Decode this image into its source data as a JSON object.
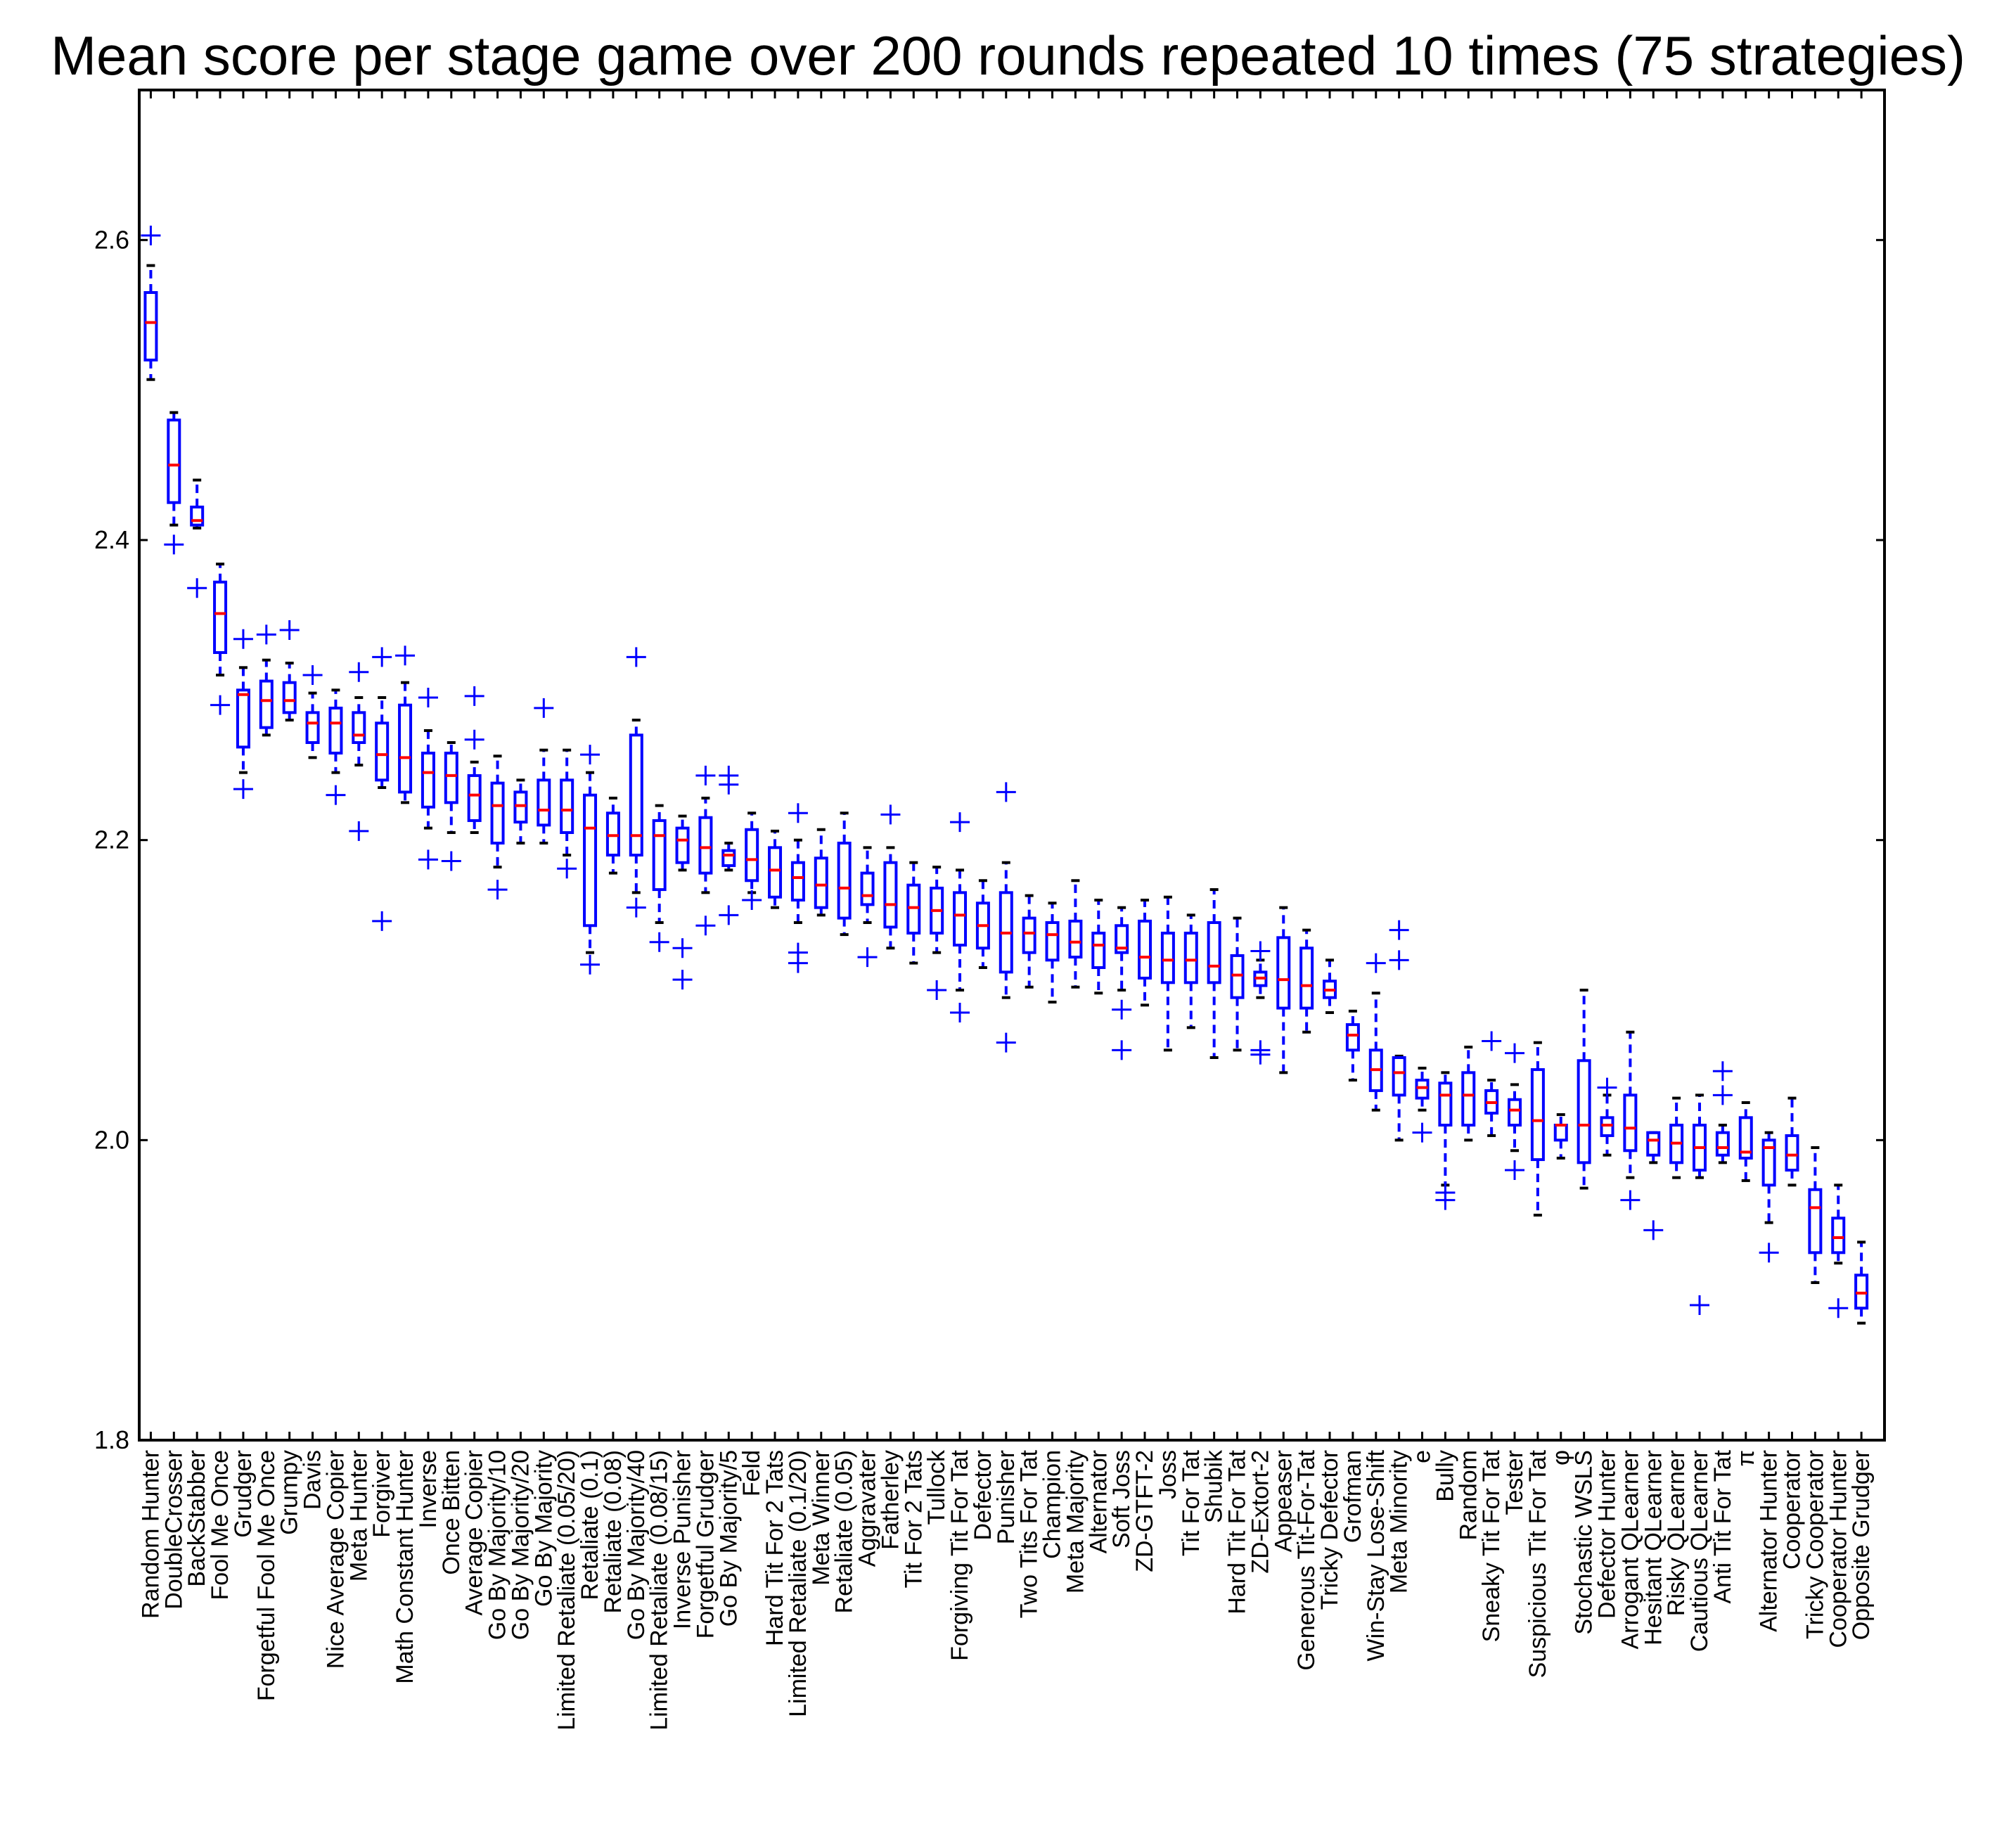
{
  "chart_data": {
    "type": "box",
    "title": "Mean score per stage game over 200 rounds repeated 10 times (75 strategies)",
    "xlabel": "",
    "ylabel": "",
    "ylim": [
      1.8,
      2.7
    ],
    "yticks": [
      1.8,
      2.0,
      2.2,
      2.4,
      2.6
    ],
    "ytick_labels": [
      "1.8",
      "2.0",
      "2.2",
      "2.4",
      "2.6"
    ],
    "grid": false,
    "box_color": "#0000ff",
    "median_color": "#ff0000",
    "whisker_cap_color": "#000000",
    "categories": [
      "Random Hunter",
      "DoubleCrosser",
      "BackStabber",
      "Fool Me Once",
      "Grudger",
      "Forgetful Fool Me Once",
      "Grumpy",
      "Davis",
      "Nice Average Copier",
      "Meta Hunter",
      "Forgiver",
      "Math Constant Hunter",
      "Inverse",
      "Once Bitten",
      "Average Copier",
      "Go By Majority/10",
      "Go By Majority/20",
      "Go By Majority",
      "Limited Retaliate (0.05/20)",
      "Retaliate (0.1)",
      "Retaliate (0.08)",
      "Go By Majority/40",
      "Limited Retaliate (0.08/15)",
      "Inverse Punisher",
      "Forgetful Grudger",
      "Go By Majority/5",
      "Feld",
      "Hard Tit For 2 Tats",
      "Limited Retaliate (0.1/20)",
      "Meta Winner",
      "Retaliate (0.05)",
      "Aggravater",
      "Fatherley",
      "Tit For 2 Tats",
      "Tullock",
      "Forgiving Tit For Tat",
      "Defector",
      "Punisher",
      "Two Tits For Tat",
      "Champion",
      "Meta Majority",
      "Alternator",
      "Soft Joss",
      "ZD-GTFT-2",
      "Joss",
      "Tit For Tat",
      "Shubik",
      "Hard Tit For Tat",
      "ZD-Extort-2",
      "Appeaser",
      "Generous Tit-For-Tat",
      "Tricky Defector",
      "Grofman",
      "Win-Stay Lose-Shift",
      "Meta Minority",
      "e",
      "Bully",
      "Random",
      "Sneaky Tit For Tat",
      "Tester",
      "Suspicious Tit For Tat",
      "φ",
      "Stochastic WSLS",
      "Defector Hunter",
      "Arrogant QLearner",
      "Hesitant QLearner",
      "Risky QLearner",
      "Cautious QLearner",
      "Anti Tit For Tat",
      "π",
      "Alternator Hunter",
      "Cooperator",
      "Tricky Cooperator",
      "Cooperator Hunter",
      "Opposite Grudger"
    ],
    "boxes": [
      {
        "median": 2.545,
        "q1": 2.52,
        "q3": 2.565,
        "whislo": 2.507,
        "whishi": 2.583,
        "fliers": [
          2.603
        ]
      },
      {
        "median": 2.45,
        "q1": 2.425,
        "q3": 2.48,
        "whislo": 2.41,
        "whishi": 2.485,
        "fliers": [
          2.397
        ]
      },
      {
        "median": 2.413,
        "q1": 2.41,
        "q3": 2.422,
        "whislo": 2.408,
        "whishi": 2.44,
        "fliers": [
          2.368
        ]
      },
      {
        "median": 2.351,
        "q1": 2.325,
        "q3": 2.372,
        "whislo": 2.31,
        "whishi": 2.384,
        "fliers": [
          2.29
        ]
      },
      {
        "median": 2.297,
        "q1": 2.262,
        "q3": 2.3,
        "whislo": 2.245,
        "whishi": 2.315,
        "fliers": [
          2.334,
          2.234
        ]
      },
      {
        "median": 2.293,
        "q1": 2.275,
        "q3": 2.306,
        "whislo": 2.27,
        "whishi": 2.32,
        "fliers": [
          2.337
        ]
      },
      {
        "median": 2.293,
        "q1": 2.285,
        "q3": 2.305,
        "whislo": 2.28,
        "whishi": 2.318,
        "fliers": [
          2.34
        ]
      },
      {
        "median": 2.278,
        "q1": 2.265,
        "q3": 2.285,
        "whislo": 2.255,
        "whishi": 2.298,
        "fliers": [
          2.31
        ]
      },
      {
        "median": 2.278,
        "q1": 2.258,
        "q3": 2.288,
        "whislo": 2.245,
        "whishi": 2.3,
        "fliers": [
          2.23
        ]
      },
      {
        "median": 2.27,
        "q1": 2.265,
        "q3": 2.285,
        "whislo": 2.25,
        "whishi": 2.295,
        "fliers": [
          2.312,
          2.206
        ]
      },
      {
        "median": 2.257,
        "q1": 2.24,
        "q3": 2.278,
        "whislo": 2.235,
        "whishi": 2.295,
        "fliers": [
          2.322,
          2.146
        ]
      },
      {
        "median": 2.255,
        "q1": 2.232,
        "q3": 2.29,
        "whislo": 2.225,
        "whishi": 2.305,
        "fliers": [
          2.323
        ]
      },
      {
        "median": 2.245,
        "q1": 2.222,
        "q3": 2.258,
        "whislo": 2.208,
        "whishi": 2.273,
        "fliers": [
          2.295,
          2.187
        ]
      },
      {
        "median": 2.243,
        "q1": 2.225,
        "q3": 2.258,
        "whislo": 2.205,
        "whishi": 2.265,
        "fliers": [
          2.186
        ]
      },
      {
        "median": 2.23,
        "q1": 2.213,
        "q3": 2.243,
        "whislo": 2.205,
        "whishi": 2.252,
        "fliers": [
          2.296,
          2.267
        ]
      },
      {
        "median": 2.223,
        "q1": 2.198,
        "q3": 2.238,
        "whislo": 2.182,
        "whishi": 2.256,
        "fliers": [
          2.167
        ]
      },
      {
        "median": 2.223,
        "q1": 2.212,
        "q3": 2.232,
        "whislo": 2.198,
        "whishi": 2.24,
        "fliers": []
      },
      {
        "median": 2.22,
        "q1": 2.21,
        "q3": 2.24,
        "whislo": 2.198,
        "whishi": 2.26,
        "fliers": [
          2.288
        ]
      },
      {
        "median": 2.22,
        "q1": 2.205,
        "q3": 2.24,
        "whislo": 2.19,
        "whishi": 2.26,
        "fliers": [
          2.181
        ]
      },
      {
        "median": 2.208,
        "q1": 2.143,
        "q3": 2.23,
        "whislo": 2.125,
        "whishi": 2.245,
        "fliers": [
          2.257,
          2.117
        ]
      },
      {
        "median": 2.203,
        "q1": 2.19,
        "q3": 2.218,
        "whislo": 2.178,
        "whishi": 2.228,
        "fliers": []
      },
      {
        "median": 2.203,
        "q1": 2.19,
        "q3": 2.27,
        "whislo": 2.165,
        "whishi": 2.28,
        "fliers": [
          2.322,
          2.155
        ]
      },
      {
        "median": 2.203,
        "q1": 2.167,
        "q3": 2.213,
        "whislo": 2.145,
        "whishi": 2.223,
        "fliers": [
          2.132
        ]
      },
      {
        "median": 2.2,
        "q1": 2.185,
        "q3": 2.208,
        "whislo": 2.18,
        "whishi": 2.216,
        "fliers": [
          2.128,
          2.107
        ]
      },
      {
        "median": 2.195,
        "q1": 2.178,
        "q3": 2.215,
        "whislo": 2.165,
        "whishi": 2.228,
        "fliers": [
          2.243,
          2.143
        ]
      },
      {
        "median": 2.19,
        "q1": 2.183,
        "q3": 2.193,
        "whislo": 2.18,
        "whishi": 2.198,
        "fliers": [
          2.243,
          2.237,
          2.15
        ]
      },
      {
        "median": 2.187,
        "q1": 2.173,
        "q3": 2.207,
        "whislo": 2.165,
        "whishi": 2.218,
        "fliers": [
          2.16
        ]
      },
      {
        "median": 2.18,
        "q1": 2.162,
        "q3": 2.195,
        "whislo": 2.155,
        "whishi": 2.206,
        "fliers": []
      },
      {
        "median": 2.175,
        "q1": 2.16,
        "q3": 2.185,
        "whislo": 2.145,
        "whishi": 2.2,
        "fliers": [
          2.218,
          2.125,
          2.118
        ]
      },
      {
        "median": 2.17,
        "q1": 2.155,
        "q3": 2.188,
        "whislo": 2.15,
        "whishi": 2.207,
        "fliers": []
      },
      {
        "median": 2.168,
        "q1": 2.148,
        "q3": 2.198,
        "whislo": 2.137,
        "whishi": 2.218,
        "fliers": []
      },
      {
        "median": 2.163,
        "q1": 2.157,
        "q3": 2.178,
        "whislo": 2.145,
        "whishi": 2.195,
        "fliers": [
          2.122
        ]
      },
      {
        "median": 2.157,
        "q1": 2.142,
        "q3": 2.185,
        "whislo": 2.128,
        "whishi": 2.195,
        "fliers": [
          2.217
        ]
      },
      {
        "median": 2.155,
        "q1": 2.138,
        "q3": 2.17,
        "whislo": 2.118,
        "whishi": 2.185,
        "fliers": []
      },
      {
        "median": 2.153,
        "q1": 2.138,
        "q3": 2.168,
        "whislo": 2.125,
        "whishi": 2.182,
        "fliers": [
          2.1
        ]
      },
      {
        "median": 2.15,
        "q1": 2.13,
        "q3": 2.165,
        "whislo": 2.1,
        "whishi": 2.18,
        "fliers": [
          2.212,
          2.085
        ]
      },
      {
        "median": 2.143,
        "q1": 2.128,
        "q3": 2.158,
        "whislo": 2.115,
        "whishi": 2.173,
        "fliers": []
      },
      {
        "median": 2.138,
        "q1": 2.112,
        "q3": 2.165,
        "whislo": 2.095,
        "whishi": 2.185,
        "fliers": [
          2.232,
          2.065
        ]
      },
      {
        "median": 2.138,
        "q1": 2.125,
        "q3": 2.148,
        "whislo": 2.102,
        "whishi": 2.163,
        "fliers": []
      },
      {
        "median": 2.137,
        "q1": 2.12,
        "q3": 2.145,
        "whislo": 2.092,
        "whishi": 2.158,
        "fliers": []
      },
      {
        "median": 2.132,
        "q1": 2.122,
        "q3": 2.146,
        "whislo": 2.102,
        "whishi": 2.173,
        "fliers": []
      },
      {
        "median": 2.13,
        "q1": 2.115,
        "q3": 2.138,
        "whislo": 2.098,
        "whishi": 2.16,
        "fliers": []
      },
      {
        "median": 2.128,
        "q1": 2.125,
        "q3": 2.143,
        "whislo": 2.1,
        "whishi": 2.155,
        "fliers": [
          2.087,
          2.06
        ]
      },
      {
        "median": 2.122,
        "q1": 2.108,
        "q3": 2.146,
        "whislo": 2.09,
        "whishi": 2.16,
        "fliers": []
      },
      {
        "median": 2.12,
        "q1": 2.105,
        "q3": 2.138,
        "whislo": 2.06,
        "whishi": 2.162,
        "fliers": []
      },
      {
        "median": 2.12,
        "q1": 2.105,
        "q3": 2.138,
        "whislo": 2.075,
        "whishi": 2.15,
        "fliers": []
      },
      {
        "median": 2.116,
        "q1": 2.105,
        "q3": 2.145,
        "whislo": 2.055,
        "whishi": 2.167,
        "fliers": []
      },
      {
        "median": 2.11,
        "q1": 2.095,
        "q3": 2.123,
        "whislo": 2.06,
        "whishi": 2.148,
        "fliers": []
      },
      {
        "median": 2.108,
        "q1": 2.103,
        "q3": 2.112,
        "whislo": 2.095,
        "whishi": 2.12,
        "fliers": [
          2.126,
          2.06,
          2.057
        ]
      },
      {
        "median": 2.107,
        "q1": 2.088,
        "q3": 2.135,
        "whislo": 2.045,
        "whishi": 2.155,
        "fliers": []
      },
      {
        "median": 2.103,
        "q1": 2.088,
        "q3": 2.128,
        "whislo": 2.072,
        "whishi": 2.14,
        "fliers": []
      },
      {
        "median": 2.1,
        "q1": 2.095,
        "q3": 2.106,
        "whislo": 2.085,
        "whishi": 2.12,
        "fliers": []
      },
      {
        "median": 2.07,
        "q1": 2.06,
        "q3": 2.077,
        "whislo": 2.04,
        "whishi": 2.086,
        "fliers": []
      },
      {
        "median": 2.047,
        "q1": 2.033,
        "q3": 2.06,
        "whislo": 2.02,
        "whishi": 2.098,
        "fliers": [
          2.118
        ]
      },
      {
        "median": 2.045,
        "q1": 2.03,
        "q3": 2.055,
        "whislo": 2.0,
        "whishi": 2.056,
        "fliers": [
          2.14,
          2.12
        ]
      },
      {
        "median": 2.035,
        "q1": 2.028,
        "q3": 2.04,
        "whislo": 2.02,
        "whishi": 2.048,
        "fliers": [
          2.005
        ]
      },
      {
        "median": 2.03,
        "q1": 2.01,
        "q3": 2.038,
        "whislo": 1.97,
        "whishi": 2.045,
        "fliers": [
          1.965,
          1.96
        ]
      },
      {
        "median": 2.03,
        "q1": 2.01,
        "q3": 2.045,
        "whislo": 2.0,
        "whishi": 2.062,
        "fliers": []
      },
      {
        "median": 2.025,
        "q1": 2.018,
        "q3": 2.033,
        "whislo": 2.003,
        "whishi": 2.04,
        "fliers": [
          2.066
        ]
      },
      {
        "median": 2.02,
        "q1": 2.01,
        "q3": 2.027,
        "whislo": 1.993,
        "whishi": 2.037,
        "fliers": [
          2.058,
          1.98
        ]
      },
      {
        "median": 2.013,
        "q1": 1.987,
        "q3": 2.047,
        "whislo": 1.95,
        "whishi": 2.065,
        "fliers": []
      },
      {
        "median": 2.01,
        "q1": 2.0,
        "q3": 2.01,
        "whislo": 1.988,
        "whishi": 2.017,
        "fliers": []
      },
      {
        "median": 2.01,
        "q1": 1.985,
        "q3": 2.053,
        "whislo": 1.968,
        "whishi": 2.1,
        "fliers": []
      },
      {
        "median": 2.01,
        "q1": 2.003,
        "q3": 2.015,
        "whislo": 1.99,
        "whishi": 2.03,
        "fliers": [
          2.035
        ]
      },
      {
        "median": 2.008,
        "q1": 1.993,
        "q3": 2.03,
        "whislo": 1.975,
        "whishi": 2.072,
        "fliers": [
          1.96
        ]
      },
      {
        "median": 2.0,
        "q1": 1.99,
        "q3": 2.005,
        "whislo": 1.985,
        "whishi": 2.005,
        "fliers": [
          1.94
        ]
      },
      {
        "median": 1.998,
        "q1": 1.985,
        "q3": 2.01,
        "whislo": 1.975,
        "whishi": 2.028,
        "fliers": []
      },
      {
        "median": 1.995,
        "q1": 1.98,
        "q3": 2.01,
        "whislo": 1.975,
        "whishi": 2.03,
        "fliers": [
          1.89
        ]
      },
      {
        "median": 1.995,
        "q1": 1.99,
        "q3": 2.005,
        "whislo": 1.985,
        "whishi": 2.01,
        "fliers": [
          2.046,
          2.03
        ]
      },
      {
        "median": 1.992,
        "q1": 1.988,
        "q3": 2.015,
        "whislo": 1.973,
        "whishi": 2.025,
        "fliers": []
      },
      {
        "median": 1.995,
        "q1": 1.97,
        "q3": 2.0,
        "whislo": 1.945,
        "whishi": 2.005,
        "fliers": [
          1.925
        ]
      },
      {
        "median": 1.99,
        "q1": 1.98,
        "q3": 2.003,
        "whislo": 1.97,
        "whishi": 2.028,
        "fliers": []
      },
      {
        "median": 1.955,
        "q1": 1.925,
        "q3": 1.967,
        "whislo": 1.905,
        "whishi": 1.995,
        "fliers": []
      },
      {
        "median": 1.935,
        "q1": 1.925,
        "q3": 1.948,
        "whislo": 1.918,
        "whishi": 1.97,
        "fliers": [
          1.888
        ]
      },
      {
        "median": 1.898,
        "q1": 1.888,
        "q3": 1.91,
        "whislo": 1.878,
        "whishi": 1.932,
        "fliers": []
      }
    ]
  }
}
